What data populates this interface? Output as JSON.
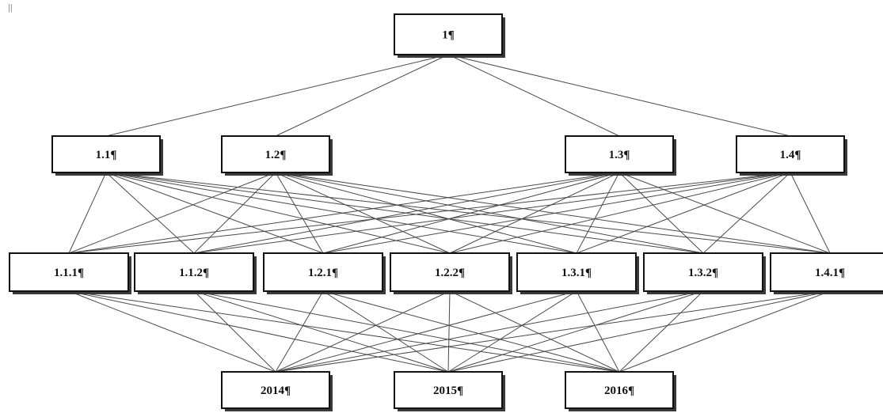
{
  "corner_mark": "||",
  "levels": [
    {
      "nodes": [
        {
          "id": "n1",
          "label": "1¶"
        }
      ]
    },
    {
      "nodes": [
        {
          "id": "n1_1",
          "label": "1.1¶"
        },
        {
          "id": "n1_2",
          "label": "1.2¶"
        },
        {
          "id": "n1_3",
          "label": "1.3¶"
        },
        {
          "id": "n1_4",
          "label": "1.4¶"
        }
      ]
    },
    {
      "nodes": [
        {
          "id": "n1_1_1",
          "label": "1.1.1¶"
        },
        {
          "id": "n1_1_2",
          "label": "1.1.2¶"
        },
        {
          "id": "n1_2_1",
          "label": "1.2.1¶"
        },
        {
          "id": "n1_2_2",
          "label": "1.2.2¶"
        },
        {
          "id": "n1_3_1",
          "label": "1.3.1¶"
        },
        {
          "id": "n1_3_2",
          "label": "1.3.2¶"
        },
        {
          "id": "n1_4_1",
          "label": "1.4.1¶"
        }
      ]
    },
    {
      "nodes": [
        {
          "id": "n2014",
          "label": "2014¶"
        },
        {
          "id": "n2015",
          "label": "2015¶"
        },
        {
          "id": "n2016",
          "label": "2016¶"
        }
      ]
    }
  ],
  "connections": "each node is linked to every node in the next level"
}
